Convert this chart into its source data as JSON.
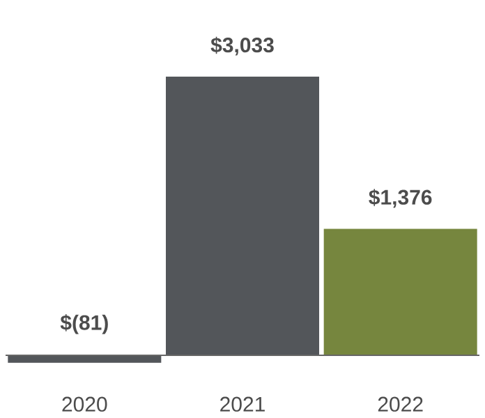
{
  "chart_data": {
    "type": "bar",
    "categories": [
      "2020",
      "2021",
      "2022"
    ],
    "values": [
      -81,
      3033,
      1376
    ],
    "colors": [
      "#53565a",
      "#53565a",
      "#76863e"
    ],
    "value_labels": [
      "$(81)",
      "$3,033",
      "$1,376"
    ],
    "tick_labels": "x"
  }
}
